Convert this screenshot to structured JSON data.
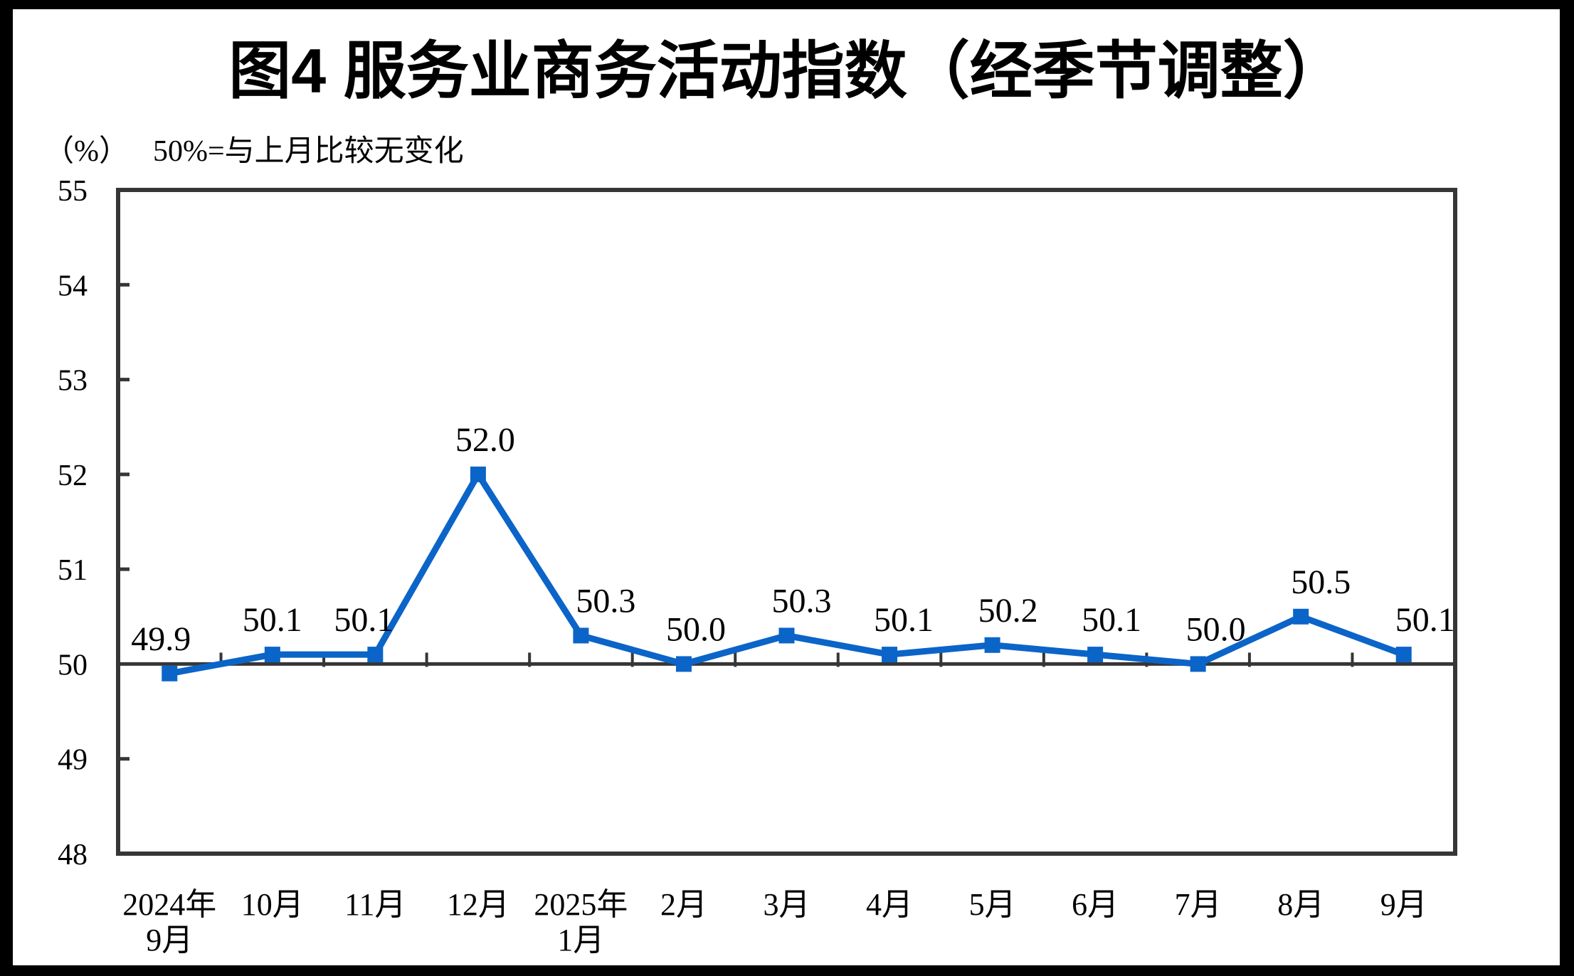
{
  "figure": {
    "title": "图4  服务业商务活动指数（经季节调整）",
    "unit_label": "（%）",
    "reference_note": "50%=与上月比较无变化"
  },
  "colors": {
    "series_blue": "#0B64C8",
    "axis_dark": "#363636",
    "text_black": "#000000",
    "frame_black": "#000000",
    "background": "#FFFFFF"
  },
  "chart_data": {
    "type": "line",
    "title": "图4 服务业商务活动指数（经季节调整）",
    "subtitle": "（%） 50%=与上月比较无变化",
    "categories": [
      "2024年9月",
      "10月",
      "11月",
      "12月",
      "2025年1月",
      "2月",
      "3月",
      "4月",
      "5月",
      "6月",
      "7月",
      "8月",
      "9月"
    ],
    "category_tick_lines": [
      [
        "2024年",
        "9月"
      ],
      [
        "10月"
      ],
      [
        "11月"
      ],
      [
        "12月"
      ],
      [
        "2025年",
        "1月"
      ],
      [
        "2月"
      ],
      [
        "3月"
      ],
      [
        "4月"
      ],
      [
        "5月"
      ],
      [
        "6月"
      ],
      [
        "7月"
      ],
      [
        "8月"
      ],
      [
        "9月"
      ]
    ],
    "series": [
      {
        "name": "服务业商务活动指数",
        "values": [
          49.9,
          50.1,
          50.1,
          52.0,
          50.3,
          50.0,
          50.3,
          50.1,
          50.2,
          50.1,
          50.0,
          50.5,
          50.1
        ]
      }
    ],
    "value_labels": [
      "49.9",
      "50.1",
      "50.1",
      "52.0",
      "50.3",
      "50.0",
      "50.3",
      "50.1",
      "50.2",
      "50.1",
      "50.0",
      "50.5",
      "50.1"
    ],
    "ylabel": "（%）",
    "xlabel": "",
    "y_ticks": [
      48,
      49,
      50,
      51,
      52,
      53,
      54,
      55
    ],
    "ylim": [
      48,
      55
    ],
    "reference_line_y": 50,
    "grid": false,
    "legend_position": "none",
    "marker": "square",
    "line_color": "#0B64C8"
  }
}
